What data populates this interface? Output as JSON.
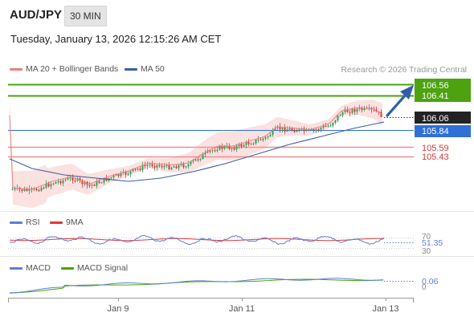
{
  "symbol": "AUD/JPY",
  "timeframe": "30 MIN",
  "datetime": "Tuesday, January 13, 2026 12:15:26 AM CET",
  "legend": {
    "ma20_label": "MA 20 + Bollinger Bands",
    "ma50_label": "MA 50",
    "credit": "Research © 2026 Trading Central"
  },
  "price_levels": [
    {
      "value": "106.56",
      "color": "#4ca20f",
      "kind": "resistance-line"
    },
    {
      "value": "106.41",
      "color": "#4ca20f",
      "kind": "resistance-line"
    },
    {
      "value": "106.06",
      "color": "#222222",
      "kind": "current-price"
    },
    {
      "value": "105.84",
      "color": "#2f6fd6",
      "kind": "pivot-line"
    },
    {
      "value": "105.59",
      "color": "#e03a3a",
      "kind": "support-line"
    },
    {
      "value": "105.43",
      "color": "#e03a3a",
      "kind": "support-line"
    }
  ],
  "rsi": {
    "label": "RSI",
    "ma_label": "9MA",
    "value": "51.35",
    "upper": "70",
    "lower": "30",
    "colors": {
      "rsi": "#5b7fd6",
      "ma": "#e03a3a"
    }
  },
  "macd": {
    "label": "MACD",
    "signal_label": "MACD Signal",
    "value": "0.06",
    "zero": "0",
    "colors": {
      "macd": "#5b7fd6",
      "signal": "#4ca20f"
    }
  },
  "x_axis": {
    "labels": [
      "Jan 9",
      "Jan 11",
      "Jan 13"
    ]
  },
  "colors": {
    "up": "#2aa35a",
    "down": "#d33a3a",
    "band": "#f9c9c9",
    "ma20": "#f08080",
    "ma50": "#3a5fa0",
    "arrow": "#2f5fa8"
  }
}
